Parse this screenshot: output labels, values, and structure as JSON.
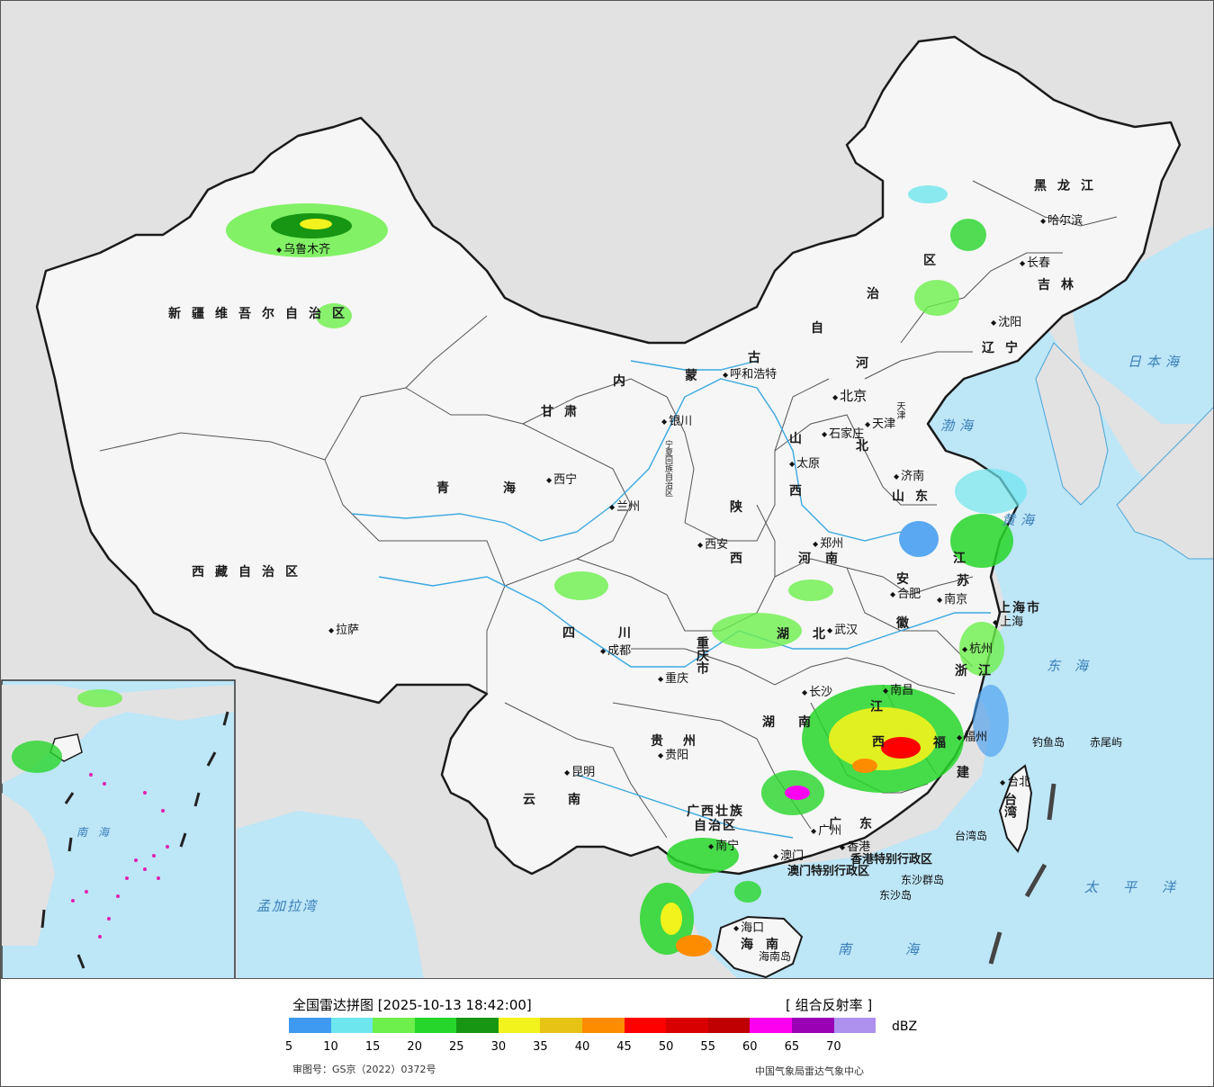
{
  "map": {
    "provinces": [
      {
        "id": "xinjiang",
        "label": "新疆维吾尔自治区"
      },
      {
        "id": "xizang",
        "label": "西藏自治区"
      },
      {
        "id": "qinghai",
        "label": "青海"
      },
      {
        "id": "gansu",
        "label": "甘肃"
      },
      {
        "id": "neimenggu-1",
        "label": "内"
      },
      {
        "id": "neimenggu-2",
        "label": "蒙"
      },
      {
        "id": "neimenggu-3",
        "label": "古"
      },
      {
        "id": "neimenggu-4",
        "label": "自"
      },
      {
        "id": "neimenggu-5",
        "label": "治"
      },
      {
        "id": "neimenggu-6",
        "label": "区"
      },
      {
        "id": "heilongjiang",
        "label": "黑龙江"
      },
      {
        "id": "jilin",
        "label": "吉林"
      },
      {
        "id": "liaoning",
        "label": "辽宁"
      },
      {
        "id": "hebei-1",
        "label": "河"
      },
      {
        "id": "hebei-2",
        "label": "北"
      },
      {
        "id": "shanxi-1",
        "label": "山"
      },
      {
        "id": "shanxi-2",
        "label": "西"
      },
      {
        "id": "shandong",
        "label": "山东"
      },
      {
        "id": "shaanxi-1",
        "label": "陕"
      },
      {
        "id": "shaanxi-2",
        "label": "西"
      },
      {
        "id": "henan",
        "label": "河南"
      },
      {
        "id": "jiangsu-1",
        "label": "江"
      },
      {
        "id": "jiangsu-2",
        "label": "苏"
      },
      {
        "id": "anhui-1",
        "label": "安"
      },
      {
        "id": "anhui-2",
        "label": "徽"
      },
      {
        "id": "hubei",
        "label": "湖北"
      },
      {
        "id": "sichuan",
        "label": "四川"
      },
      {
        "id": "chongqing",
        "label": "重庆市"
      },
      {
        "id": "hunan",
        "label": "湖南"
      },
      {
        "id": "jiangxi-1",
        "label": "江"
      },
      {
        "id": "jiangxi-2",
        "label": "西"
      },
      {
        "id": "zhejiang",
        "label": "浙江"
      },
      {
        "id": "fujian-1",
        "label": "福"
      },
      {
        "id": "fujian-2",
        "label": "建"
      },
      {
        "id": "guizhou",
        "label": "贵州"
      },
      {
        "id": "yunnan",
        "label": "云南"
      },
      {
        "id": "guangxi-1",
        "label": "广西壮族"
      },
      {
        "id": "guangxi-2",
        "label": "自治区"
      },
      {
        "id": "guangdong",
        "label": "广东"
      },
      {
        "id": "hainan",
        "label": "海南"
      },
      {
        "id": "taiwan",
        "label": "台湾"
      },
      {
        "id": "shanghai",
        "label": "上海市"
      },
      {
        "id": "ningxia",
        "label": "宁夏回族自治区"
      },
      {
        "id": "tianjin",
        "label": "天津"
      }
    ],
    "cities": [
      {
        "id": "urumqi",
        "label": "乌鲁木齐"
      },
      {
        "id": "lhasa",
        "label": "拉萨"
      },
      {
        "id": "xining",
        "label": "西宁"
      },
      {
        "id": "lanzhou",
        "label": "兰州"
      },
      {
        "id": "yinchuan",
        "label": "银川"
      },
      {
        "id": "hohhot",
        "label": "呼和浩特"
      },
      {
        "id": "harbin",
        "label": "哈尔滨"
      },
      {
        "id": "changchun",
        "label": "长春"
      },
      {
        "id": "shenyang",
        "label": "沈阳"
      },
      {
        "id": "beijing",
        "label": "北京"
      },
      {
        "id": "tianjin-city",
        "label": "天津"
      },
      {
        "id": "shijiazhuang",
        "label": "石家庄"
      },
      {
        "id": "taiyuan",
        "label": "太原"
      },
      {
        "id": "jinan",
        "label": "济南"
      },
      {
        "id": "zhengzhou",
        "label": "郑州"
      },
      {
        "id": "xian",
        "label": "西安"
      },
      {
        "id": "hefei",
        "label": "合肥"
      },
      {
        "id": "nanjing",
        "label": "南京"
      },
      {
        "id": "shanghai-city",
        "label": "上海"
      },
      {
        "id": "hangzhou",
        "label": "杭州"
      },
      {
        "id": "wuhan",
        "label": "武汉"
      },
      {
        "id": "chengdu",
        "label": "成都"
      },
      {
        "id": "chongqing-city",
        "label": "重庆"
      },
      {
        "id": "changsha",
        "label": "长沙"
      },
      {
        "id": "nanchang",
        "label": "南昌"
      },
      {
        "id": "fuzhou",
        "label": "福州"
      },
      {
        "id": "guiyang",
        "label": "贵阳"
      },
      {
        "id": "kunming",
        "label": "昆明"
      },
      {
        "id": "nanning",
        "label": "南宁"
      },
      {
        "id": "guangzhou",
        "label": "广州"
      },
      {
        "id": "haikou",
        "label": "海口"
      },
      {
        "id": "taibei",
        "label": "台北"
      },
      {
        "id": "hongkong",
        "label": "香港"
      },
      {
        "id": "macau",
        "label": "澳门"
      }
    ],
    "sar_labels": [
      {
        "id": "hk-sar",
        "label": "香港特别行政区"
      },
      {
        "id": "macau-sar",
        "label": "澳门特别行政区"
      }
    ],
    "seas": [
      {
        "id": "japan-sea",
        "label": "日本海"
      },
      {
        "id": "bohai",
        "label": "渤海"
      },
      {
        "id": "yellow-sea",
        "label": "黄海"
      },
      {
        "id": "east-sea",
        "label": "东海"
      },
      {
        "id": "pacific",
        "label": "太平洋"
      },
      {
        "id": "south-sea",
        "label": "南海"
      },
      {
        "id": "bengal",
        "label": "孟加拉湾"
      },
      {
        "id": "inset-south-sea",
        "label": "南海"
      }
    ],
    "islands": [
      {
        "id": "diaoyu",
        "label": "钓鱼岛"
      },
      {
        "id": "chiwei",
        "label": "赤尾屿"
      },
      {
        "id": "taiwan-island",
        "label": "台湾岛"
      },
      {
        "id": "dongsha-islands",
        "label": "东沙群岛"
      },
      {
        "id": "dongsha",
        "label": "东沙岛"
      },
      {
        "id": "hainan-island",
        "label": "海南岛"
      }
    ],
    "colors": {
      "ocean": "#bde6f7",
      "land_other": "#e2e2e2",
      "china_land": "#f6f6f6",
      "boundary": "#222222",
      "river": "#3aa8e0"
    }
  },
  "legend": {
    "title": "全国雷达拼图 [2025-10-13 18:42:00]",
    "product": "[ 组合反射率 ]",
    "unit": "dBZ",
    "ticks": [
      "5",
      "10",
      "15",
      "20",
      "25",
      "30",
      "35",
      "40",
      "45",
      "50",
      "55",
      "60",
      "65",
      "70"
    ],
    "colors": [
      "#3d9af0",
      "#6ee6ee",
      "#6df04c",
      "#27d62a",
      "#179614",
      "#f2f21c",
      "#e6c314",
      "#fe8c00",
      "#fe0000",
      "#d80000",
      "#c00000",
      "#fe00f0",
      "#9a00b4",
      "#ae90ee"
    ],
    "approval": "审图号：GS京（2022）0372号",
    "agency": "中国气象局雷达气象中心"
  }
}
